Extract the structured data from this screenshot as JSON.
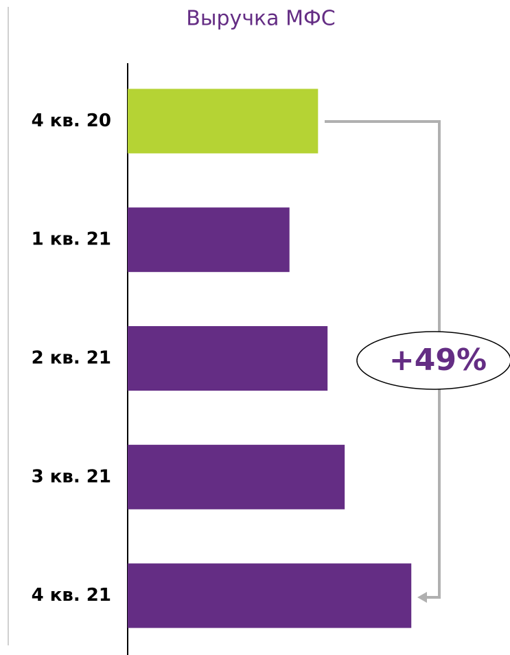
{
  "chart_data": {
    "type": "bar",
    "orientation": "horizontal",
    "title": "Выручка МФС",
    "categories": [
      "4 кв. 20",
      "1 кв. 21",
      "2 кв. 21",
      "3 кв. 21",
      "4 кв. 21"
    ],
    "values": [
      100,
      85,
      105,
      114,
      149
    ],
    "colors": [
      "#b5d334",
      "#642d84",
      "#642d84",
      "#642d84",
      "#642d84"
    ],
    "xlim": [
      0,
      150
    ],
    "annotation": "+49%"
  }
}
